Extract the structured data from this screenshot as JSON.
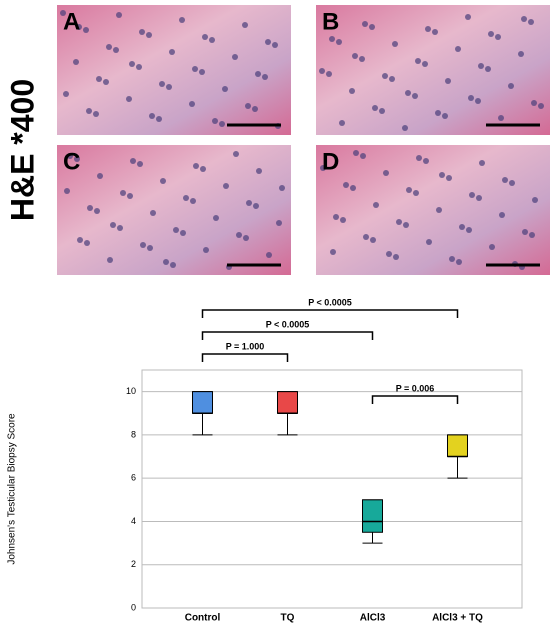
{
  "panels": {
    "stain_label": "H&E *400",
    "labels": [
      "A",
      "B",
      "C",
      "D"
    ]
  },
  "chart_data": {
    "type": "box",
    "y_label": "Johnsen's Testicular Biopsy Score",
    "categories": [
      "Control",
      "TQ",
      "AlCl3",
      "AlCl3 + TQ"
    ],
    "colors": [
      "#4f8fe0",
      "#e84848",
      "#17a99a",
      "#e3d21f"
    ],
    "boxes": [
      {
        "min": 8,
        "q1": 9,
        "median": 9,
        "q3": 10,
        "max": 10
      },
      {
        "min": 8,
        "q1": 9,
        "median": 9,
        "q3": 10,
        "max": 10
      },
      {
        "min": 3,
        "q1": 3.5,
        "median": 4,
        "q3": 5,
        "max": 5
      },
      {
        "min": 6,
        "q1": 7,
        "median": 7,
        "q3": 8,
        "max": 8
      }
    ],
    "ylim": [
      0,
      11
    ],
    "yticks": [
      0,
      2,
      4,
      6,
      8,
      10
    ],
    "grid": true,
    "comparisons": [
      {
        "between": [
          "Control",
          "TQ"
        ],
        "label": "P = 1.000"
      },
      {
        "between": [
          "Control",
          "AlCl3"
        ],
        "label": "P < 0.0005"
      },
      {
        "between": [
          "Control",
          "AlCl3 + TQ"
        ],
        "label": "P < 0.0005"
      },
      {
        "between": [
          "AlCl3",
          "AlCl3 + TQ"
        ],
        "label": "P = 0.006"
      }
    ]
  }
}
